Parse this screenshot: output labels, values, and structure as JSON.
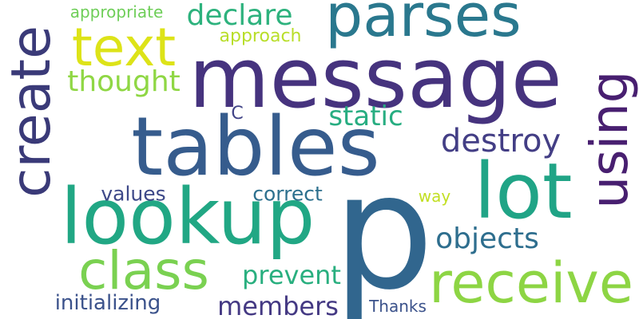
{
  "cloud": {
    "words": [
      {
        "text": "message",
        "color": "#46337e"
      },
      {
        "text": "tables",
        "color": "#365c8d"
      },
      {
        "text": "p",
        "color": "#31668e"
      },
      {
        "text": "lookup",
        "color": "#21a784"
      },
      {
        "text": "lot",
        "color": "#20a486"
      },
      {
        "text": "text",
        "color": "#dde318"
      },
      {
        "text": "parses",
        "color": "#2a788e"
      },
      {
        "text": "create",
        "color": "#3a3a78"
      },
      {
        "text": "receive",
        "color": "#8dd544"
      },
      {
        "text": "using",
        "color": "#481f70"
      },
      {
        "text": "class",
        "color": "#7ad151"
      },
      {
        "text": "destroy",
        "color": "#433e85"
      },
      {
        "text": "objects",
        "color": "#2e6e8e"
      },
      {
        "text": "declare",
        "color": "#2db27d"
      },
      {
        "text": "thought",
        "color": "#8fd744"
      },
      {
        "text": "static",
        "color": "#27ad81"
      },
      {
        "text": "members",
        "color": "#443983"
      },
      {
        "text": "prevent",
        "color": "#29af7f"
      },
      {
        "text": "initializing",
        "color": "#3b528b"
      },
      {
        "text": "values",
        "color": "#3e4989"
      },
      {
        "text": "correct",
        "color": "#2d708e"
      },
      {
        "text": "approach",
        "color": "#b8de29"
      },
      {
        "text": "appropriate",
        "color": "#6ece58"
      },
      {
        "text": "Thanks",
        "color": "#3b528b"
      },
      {
        "text": "way",
        "color": "#c2df23"
      },
      {
        "text": "C",
        "color": "#414487"
      }
    ]
  }
}
